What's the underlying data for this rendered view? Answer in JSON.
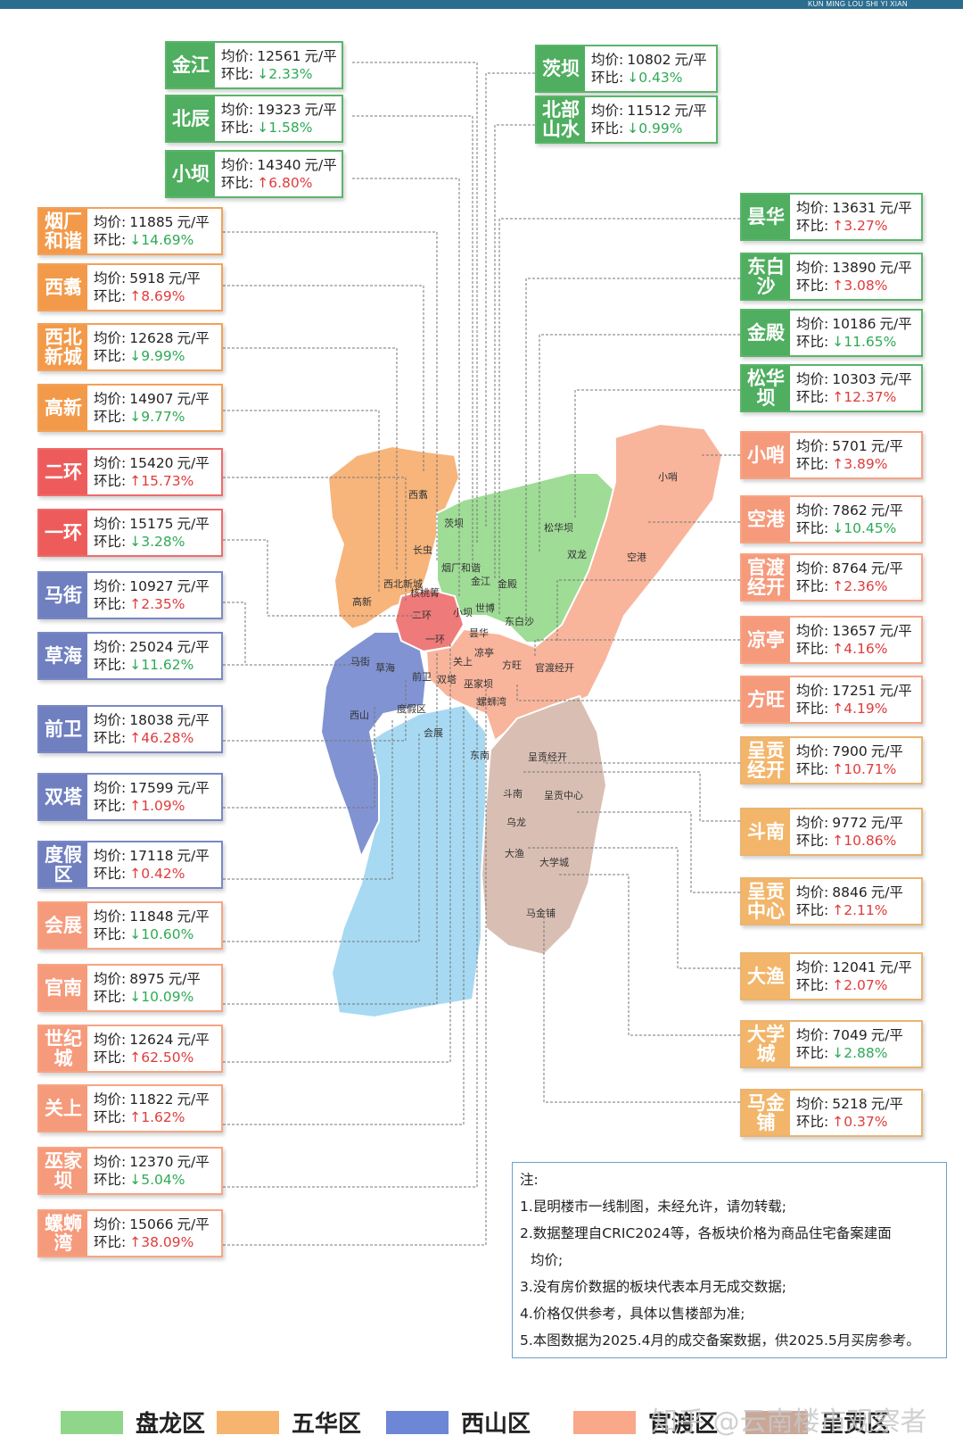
{
  "header": {
    "text": "KUN MING LOU SHI YI XIAN"
  },
  "price_prefix": "均价:",
  "change_prefix": "环比:",
  "unit": "元/平",
  "districts": [
    {
      "name": "金江",
      "price": "12561",
      "change": "2.33%",
      "dir": "down",
      "district": "panlong"
    },
    {
      "name": "北辰",
      "price": "19323",
      "change": "1.58%",
      "dir": "down",
      "district": "panlong"
    },
    {
      "name": "小坝",
      "price": "14340",
      "change": "6.80%",
      "dir": "up",
      "district": "panlong"
    },
    {
      "name": "茨坝",
      "price": "10802",
      "change": "0.43%",
      "dir": "down",
      "district": "panlong"
    },
    {
      "name": "北部山水",
      "price": "11512",
      "change": "0.99%",
      "dir": "down",
      "district": "panlong"
    },
    {
      "name": "烟厂和谐",
      "price": "11885",
      "change": "14.69%",
      "dir": "down",
      "district": "wuhua"
    },
    {
      "name": "西翥",
      "price": "5918",
      "change": "8.69%",
      "dir": "up",
      "district": "wuhua"
    },
    {
      "name": "西北新城",
      "price": "12628",
      "change": "9.99%",
      "dir": "down",
      "district": "wuhua"
    },
    {
      "name": "高新",
      "price": "14907",
      "change": "9.77%",
      "dir": "down",
      "district": "wuhua"
    },
    {
      "name": "二环",
      "price": "15420",
      "change": "15.73%",
      "dir": "up",
      "district": "red"
    },
    {
      "name": "一环",
      "price": "15175",
      "change": "3.28%",
      "dir": "down",
      "district": "red"
    },
    {
      "name": "马街",
      "price": "10927",
      "change": "2.35%",
      "dir": "up",
      "district": "xishan"
    },
    {
      "name": "草海",
      "price": "25024",
      "change": "11.62%",
      "dir": "down",
      "district": "xishan"
    },
    {
      "name": "前卫",
      "price": "18038",
      "change": "46.28%",
      "dir": "up",
      "district": "xishan"
    },
    {
      "name": "双塔",
      "price": "17599",
      "change": "1.09%",
      "dir": "up",
      "district": "xishan"
    },
    {
      "name": "度假区",
      "price": "17118",
      "change": "0.42%",
      "dir": "up",
      "district": "xishan"
    },
    {
      "name": "会展",
      "price": "11848",
      "change": "10.60%",
      "dir": "down",
      "district": "guandu"
    },
    {
      "name": "官南",
      "price": "8975",
      "change": "10.09%",
      "dir": "down",
      "district": "guandu"
    },
    {
      "name": "世纪城",
      "price": "12624",
      "change": "62.50%",
      "dir": "up",
      "district": "guandu"
    },
    {
      "name": "关上",
      "price": "11822",
      "change": "1.62%",
      "dir": "up",
      "district": "guandu"
    },
    {
      "name": "巫家坝",
      "price": "12370",
      "change": "5.04%",
      "dir": "down",
      "district": "guandu"
    },
    {
      "name": "螺蛳湾",
      "price": "15066",
      "change": "38.09%",
      "dir": "up",
      "district": "guandu"
    },
    {
      "name": "昙华",
      "price": "13631",
      "change": "3.27%",
      "dir": "up",
      "district": "panlong"
    },
    {
      "name": "东白沙",
      "price": "13890",
      "change": "3.08%",
      "dir": "up",
      "district": "panlong"
    },
    {
      "name": "金殿",
      "price": "10186",
      "change": "11.65%",
      "dir": "down",
      "district": "panlong"
    },
    {
      "name": "松华坝",
      "price": "10303",
      "change": "12.37%",
      "dir": "up",
      "district": "panlong"
    },
    {
      "name": "小哨",
      "price": "5701",
      "change": "3.89%",
      "dir": "up",
      "district": "guandu"
    },
    {
      "name": "空港",
      "price": "7862",
      "change": "10.45%",
      "dir": "down",
      "district": "guandu"
    },
    {
      "name": "官渡经开",
      "price": "8764",
      "change": "2.36%",
      "dir": "up",
      "district": "guandu"
    },
    {
      "name": "凉亭",
      "price": "13657",
      "change": "4.16%",
      "dir": "up",
      "district": "guandu"
    },
    {
      "name": "方旺",
      "price": "17251",
      "change": "4.19%",
      "dir": "up",
      "district": "guandu"
    },
    {
      "name": "呈贡经开",
      "price": "7900",
      "change": "10.71%",
      "dir": "up",
      "district": "chenggong"
    },
    {
      "name": "斗南",
      "price": "9772",
      "change": "10.86%",
      "dir": "up",
      "district": "chenggong"
    },
    {
      "name": "呈贡中心",
      "price": "8846",
      "change": "2.11%",
      "dir": "up",
      "district": "chenggong"
    },
    {
      "name": "大渔",
      "price": "12041",
      "change": "2.07%",
      "dir": "up",
      "district": "chenggong"
    },
    {
      "name": "大学城",
      "price": "7049",
      "change": "2.88%",
      "dir": "down",
      "district": "chenggong"
    },
    {
      "name": "马金铺",
      "price": "5218",
      "change": "0.37%",
      "dir": "up",
      "district": "chenggong"
    }
  ],
  "map_labels": [
    "西翥",
    "茨坝",
    "长虫",
    "烟厂和谐",
    "金江",
    "金殿",
    "松华坝",
    "双龙",
    "空港",
    "小哨",
    "西北新城",
    "核桃箐",
    "高新",
    "二环",
    "小坝",
    "世博",
    "东白沙",
    "一环",
    "昙华",
    "马街",
    "草海",
    "关上",
    "凉亭",
    "方旺",
    "官渡经开",
    "前卫",
    "双塔",
    "巫家坝",
    "螺蛳湾",
    "西山",
    "度假区",
    "会展",
    "呈贡经开",
    "东南",
    "斗南",
    "呈贡中心",
    "乌龙",
    "大渔",
    "大学城",
    "马金铺"
  ],
  "notes": {
    "title": "注:",
    "lines": [
      "1.昆明楼市一线制图，未经允许，请勿转载;",
      "2.数据整理自CRIC2024等，各板块价格为商品住宅备案建面",
      "均价;",
      "3.没有房价数据的板块代表本月无成交数据;",
      "4.价格仅供参考，具体以售楼部为准;",
      "5.本图数据为2025.4月的成交备案数据，供2025.5月买房参考。"
    ]
  },
  "legend": [
    {
      "label": "盘龙区",
      "color": "#8fd68a"
    },
    {
      "label": "五华区",
      "color": "#f7b46e"
    },
    {
      "label": "西山区",
      "color": "#6d86d6"
    },
    {
      "label": "官渡区",
      "color": "#f9a98a"
    },
    {
      "label": "呈贡区",
      "color": "#c9a898"
    }
  ],
  "watermark": "知乎 @云南楼市观察者",
  "colors": {
    "panlong": "#9fdc96",
    "wuhua": "#f7b57b",
    "xishan": "#8193d2",
    "guandu": "#f8b59c",
    "chenggong": "#d9bfb3",
    "lake": "#a7d9f2",
    "red": "#ef7a7a"
  }
}
